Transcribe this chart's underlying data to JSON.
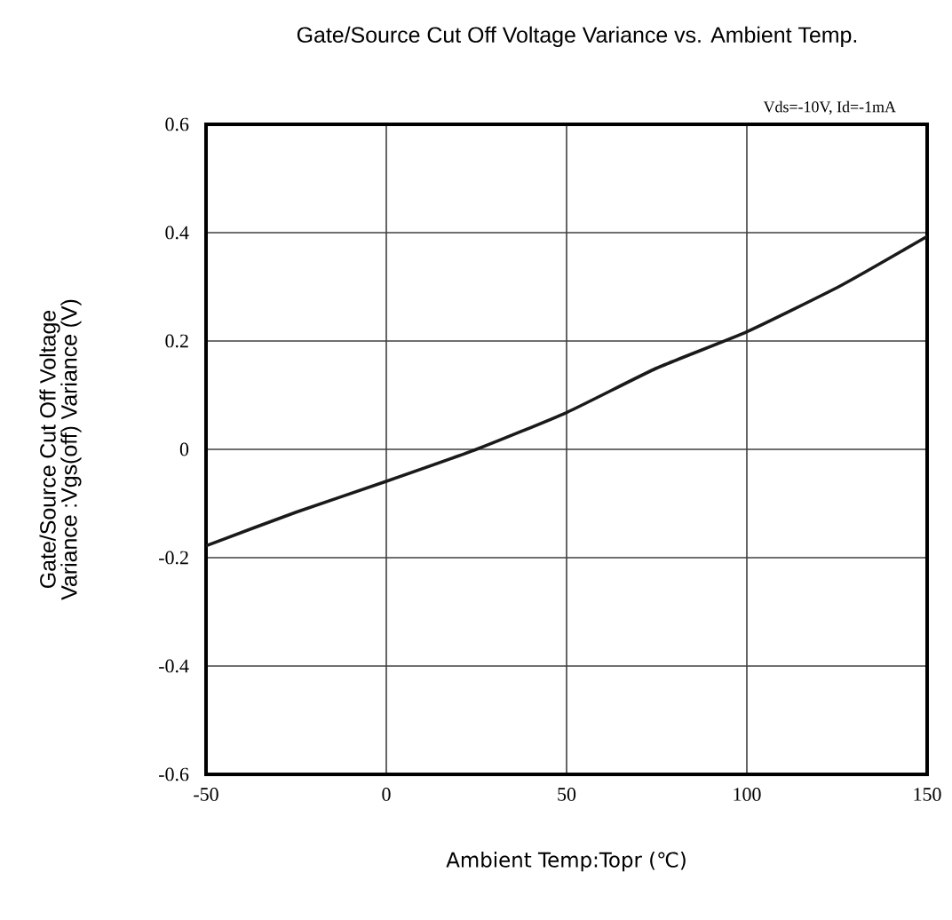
{
  "chart_data": {
    "type": "line",
    "title": "Gate/Source Cut Off Voltage Variance  vs.  Ambient Temp.",
    "xlabel": "Ambient Temp:Topr (℃)",
    "ylabel": "Gate/Source Cut Off Voltage Variance :Vgs(off) Variance  (V)",
    "annotations": [
      "Vds=-10V,  Id=-1mA"
    ],
    "x": [
      -50,
      -25,
      0,
      25,
      50,
      75,
      100,
      126,
      150
    ],
    "series": [
      {
        "color": "#1a1a1a",
        "values": [
          -0.178,
          -0.116,
          -0.059,
          0,
          0.068,
          0.15,
          0.217,
          0.302,
          0.393
        ]
      }
    ],
    "xlim": [
      -50,
      150
    ],
    "xticks": [
      -50,
      0,
      50,
      100,
      150
    ],
    "ylim": [
      -0.6,
      0.6
    ],
    "yticks": [
      -0.6,
      -0.4,
      -0.2,
      0,
      0.2,
      0.4,
      0.6
    ],
    "grid": true,
    "marker": "none",
    "line_style": "solid"
  }
}
